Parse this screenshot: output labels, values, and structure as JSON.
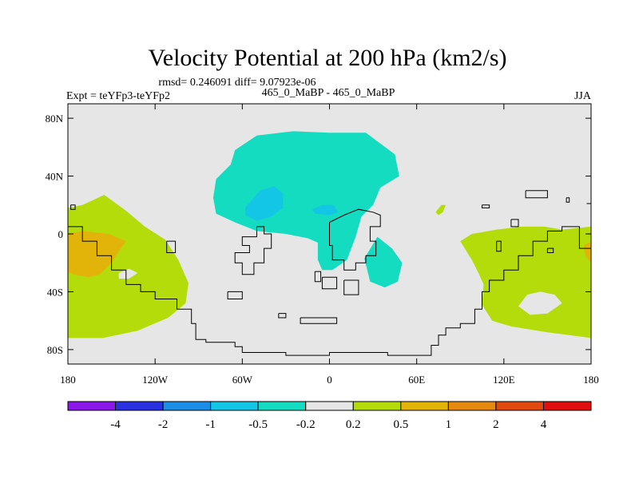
{
  "chart_data": {
    "type": "heatmap",
    "title": "Velocity Potential at 200 hPa (km2/s)",
    "stats_label": "rmsd= 0.246091  diff= 9.07923e-06",
    "experiment_label": "Expt = teYFp3-teYFp2",
    "comparison_label": "465_0_MaBP - 465_0_MaBP",
    "season_label": "JJA",
    "x_ticks": [
      {
        "value": -180,
        "label": "180"
      },
      {
        "value": -120,
        "label": "120W"
      },
      {
        "value": -60,
        "label": "60W"
      },
      {
        "value": 0,
        "label": "0"
      },
      {
        "value": 60,
        "label": "60E"
      },
      {
        "value": 120,
        "label": "120E"
      },
      {
        "value": 180,
        "label": "180"
      }
    ],
    "y_ticks": [
      {
        "value": 80,
        "label": "80N"
      },
      {
        "value": 40,
        "label": "40N"
      },
      {
        "value": 0,
        "label": "0"
      },
      {
        "value": -40,
        "label": "40S"
      },
      {
        "value": -80,
        "label": "80S"
      }
    ],
    "xlim": [
      -180,
      180
    ],
    "ylim": [
      -90,
      90
    ],
    "colorbar": {
      "colors": [
        "#8b17e8",
        "#2a32e0",
        "#1c8ee6",
        "#14c6e6",
        "#14dcc0",
        "#e6e6e6",
        "#b4dc0a",
        "#e2b40a",
        "#e68a0f",
        "#e04a10",
        "#e00e0e"
      ],
      "labels": [
        "-4",
        "-2",
        "-1",
        "-0.5",
        "-0.2",
        "0.2",
        "0.5",
        "1",
        "2",
        "4"
      ]
    },
    "regions": [
      {
        "name": "north-atlantic-teal",
        "level": "-0.5 to -0.2",
        "color": "#14dcc0",
        "points": [
          [
            -65,
            58
          ],
          [
            -50,
            68
          ],
          [
            -25,
            71
          ],
          [
            0,
            70
          ],
          [
            25,
            70
          ],
          [
            45,
            55
          ],
          [
            48,
            40
          ],
          [
            35,
            32
          ],
          [
            30,
            20
          ],
          [
            22,
            12
          ],
          [
            18,
            -2
          ],
          [
            12,
            -18
          ],
          [
            2,
            -25
          ],
          [
            -5,
            -25
          ],
          [
            -8,
            -18
          ],
          [
            -8,
            -6
          ],
          [
            -15,
            -3
          ],
          [
            -30,
            0
          ],
          [
            -50,
            2
          ],
          [
            -65,
            8
          ],
          [
            -78,
            14
          ],
          [
            -80,
            25
          ],
          [
            -78,
            38
          ],
          [
            -68,
            48
          ]
        ]
      },
      {
        "name": "west-atlantic-blue",
        "level": "-1 to -0.5",
        "color": "#14c6e6",
        "points": [
          [
            -58,
            18
          ],
          [
            -48,
            30
          ],
          [
            -38,
            33
          ],
          [
            -32,
            28
          ],
          [
            -32,
            18
          ],
          [
            -40,
            12
          ],
          [
            -50,
            9
          ],
          [
            -58,
            13
          ]
        ]
      },
      {
        "name": "europe-blue",
        "level": "-1 to -0.5",
        "color": "#14c6e6",
        "points": [
          [
            -12,
            17
          ],
          [
            -5,
            20
          ],
          [
            3,
            20
          ],
          [
            6,
            15
          ],
          [
            0,
            13
          ],
          [
            -10,
            14
          ]
        ]
      },
      {
        "name": "indian-ocean-teal",
        "level": "-0.5 to -0.2",
        "color": "#14dcc0",
        "points": [
          [
            33,
            -2
          ],
          [
            43,
            -10
          ],
          [
            50,
            -20
          ],
          [
            47,
            -33
          ],
          [
            38,
            -37
          ],
          [
            28,
            -33
          ],
          [
            24,
            -17
          ]
        ]
      },
      {
        "name": "asia-green",
        "level": "0.2 to 0.5",
        "color": "#b4dc0a",
        "points": [
          [
            73,
            15
          ],
          [
            77,
            20
          ],
          [
            80,
            20
          ],
          [
            78,
            15
          ],
          [
            75,
            13
          ]
        ]
      },
      {
        "name": "pacific-west-green",
        "level": "0.2 to 0.5",
        "color": "#b4dc0a",
        "points": [
          [
            -180,
            18
          ],
          [
            -170,
            20
          ],
          [
            -155,
            27
          ],
          [
            -140,
            16
          ],
          [
            -127,
            5
          ],
          [
            -113,
            -4
          ],
          [
            -104,
            -18
          ],
          [
            -97,
            -34
          ],
          [
            -99,
            -48
          ],
          [
            -111,
            -58
          ],
          [
            -132,
            -67
          ],
          [
            -156,
            -72
          ],
          [
            -180,
            -72
          ]
        ]
      },
      {
        "name": "pacific-east-green",
        "level": "0.2 to 0.5",
        "color": "#b4dc0a",
        "points": [
          [
            180,
            -72
          ],
          [
            165,
            -70
          ],
          [
            150,
            -68
          ],
          [
            125,
            -64
          ],
          [
            112,
            -60
          ],
          [
            105,
            -49
          ],
          [
            106,
            -35
          ],
          [
            103,
            -28
          ],
          [
            98,
            -18
          ],
          [
            90,
            -5
          ],
          [
            98,
            0
          ],
          [
            115,
            3
          ],
          [
            132,
            5
          ],
          [
            148,
            5
          ],
          [
            160,
            3
          ],
          [
            180,
            5
          ]
        ]
      },
      {
        "name": "pacific-west-orange",
        "level": "0.5 to 1",
        "color": "#e2b40a",
        "points": [
          [
            -180,
            0
          ],
          [
            -170,
            2
          ],
          [
            -152,
            0
          ],
          [
            -140,
            -5
          ],
          [
            -145,
            -12
          ],
          [
            -150,
            -20
          ],
          [
            -158,
            -28
          ],
          [
            -166,
            -30
          ],
          [
            -176,
            -28
          ],
          [
            -180,
            -26
          ]
        ]
      },
      {
        "name": "pacific-east-orange",
        "level": "0.5 to 1",
        "color": "#e2b40a",
        "points": [
          [
            180,
            -20
          ],
          [
            176,
            -15
          ],
          [
            175,
            -8
          ],
          [
            180,
            -5
          ]
        ]
      },
      {
        "name": "pacific-gray-hole-west",
        "level": "-0.2 to 0.2",
        "color": "#e6e6e6",
        "points": [
          [
            -145,
            -27
          ],
          [
            -138,
            -24
          ],
          [
            -132,
            -27
          ],
          [
            -138,
            -31
          ],
          [
            -145,
            -31
          ]
        ]
      },
      {
        "name": "pacific-gray-hole-east",
        "level": "-0.2 to 0.2",
        "color": "#e6e6e6",
        "points": [
          [
            130,
            -50
          ],
          [
            136,
            -42
          ],
          [
            145,
            -40
          ],
          [
            155,
            -42
          ],
          [
            160,
            -48
          ],
          [
            150,
            -55
          ],
          [
            138,
            -56
          ]
        ]
      }
    ],
    "coastlines": [
      [
        [
          -180,
          5
        ],
        [
          -170,
          5
        ],
        [
          -170,
          -5
        ],
        [
          -160,
          -5
        ],
        [
          -160,
          -15
        ],
        [
          -150,
          -15
        ],
        [
          -150,
          -25
        ],
        [
          -140,
          -25
        ],
        [
          -140,
          -35
        ],
        [
          -130,
          -35
        ],
        [
          -130,
          -40
        ],
        [
          -120,
          -40
        ],
        [
          -120,
          -45
        ],
        [
          -105,
          -45
        ],
        [
          -105,
          -52
        ],
        [
          -95,
          -52
        ],
        [
          -95,
          -62
        ],
        [
          -92,
          -62
        ],
        [
          -92,
          -73
        ],
        [
          -85,
          -73
        ],
        [
          -85,
          -75
        ],
        [
          -65,
          -75
        ],
        [
          -65,
          -78
        ],
        [
          -60,
          -78
        ],
        [
          -60,
          -82
        ],
        [
          -30,
          -82
        ],
        [
          -30,
          -84
        ],
        [
          0,
          -84
        ],
        [
          0,
          -82
        ],
        [
          40,
          -82
        ],
        [
          40,
          -84
        ],
        [
          70,
          -84
        ],
        [
          70,
          -77
        ],
        [
          75,
          -77
        ],
        [
          75,
          -70
        ],
        [
          80,
          -70
        ],
        [
          80,
          -65
        ],
        [
          90,
          -65
        ],
        [
          90,
          -62
        ],
        [
          100,
          -62
        ],
        [
          100,
          -52
        ],
        [
          105,
          -52
        ],
        [
          105,
          -40
        ],
        [
          110,
          -40
        ],
        [
          110,
          -32
        ],
        [
          120,
          -32
        ],
        [
          120,
          -25
        ],
        [
          130,
          -25
        ],
        [
          130,
          -15
        ],
        [
          140,
          -15
        ],
        [
          140,
          -5
        ],
        [
          150,
          -5
        ],
        [
          150,
          2
        ],
        [
          160,
          2
        ],
        [
          160,
          5
        ],
        [
          172,
          5
        ],
        [
          172,
          -10
        ],
        [
          180,
          -10
        ]
      ],
      [
        [
          -50,
          5
        ],
        [
          -45,
          5
        ],
        [
          -45,
          0
        ],
        [
          -40,
          0
        ],
        [
          -40,
          -10
        ],
        [
          -45,
          -10
        ],
        [
          -45,
          -20
        ],
        [
          -52,
          -20
        ],
        [
          -52,
          -28
        ],
        [
          -60,
          -28
        ],
        [
          -60,
          -20
        ],
        [
          -65,
          -20
        ],
        [
          -65,
          -13
        ],
        [
          -55,
          -13
        ],
        [
          -55,
          -8
        ],
        [
          -60,
          -8
        ],
        [
          -60,
          -2
        ],
        [
          -50,
          -2
        ],
        [
          -50,
          5
        ]
      ],
      [
        [
          -70,
          -40
        ],
        [
          -60,
          -40
        ],
        [
          -60,
          -45
        ],
        [
          -70,
          -45
        ],
        [
          -70,
          -40
        ]
      ],
      [
        [
          -35,
          -55
        ],
        [
          -30,
          -55
        ],
        [
          -30,
          -58
        ],
        [
          -35,
          -58
        ],
        [
          -35,
          -55
        ]
      ],
      [
        [
          -20,
          -58
        ],
        [
          5,
          -58
        ],
        [
          5,
          -62
        ],
        [
          -20,
          -62
        ],
        [
          -20,
          -58
        ]
      ],
      [
        [
          0,
          8
        ],
        [
          10,
          13
        ],
        [
          20,
          17
        ],
        [
          30,
          15
        ],
        [
          35,
          13
        ],
        [
          35,
          5
        ],
        [
          28,
          5
        ],
        [
          28,
          -5
        ],
        [
          32,
          -5
        ],
        [
          32,
          -15
        ],
        [
          25,
          -15
        ],
        [
          25,
          -20
        ],
        [
          18,
          -20
        ],
        [
          18,
          -25
        ],
        [
          10,
          -25
        ],
        [
          10,
          -18
        ],
        [
          2,
          -18
        ],
        [
          2,
          -8
        ],
        [
          0,
          -8
        ],
        [
          0,
          8
        ]
      ],
      [
        [
          -5,
          -30
        ],
        [
          5,
          -30
        ],
        [
          5,
          -38
        ],
        [
          -5,
          -38
        ],
        [
          -5,
          -30
        ]
      ],
      [
        [
          10,
          -32
        ],
        [
          20,
          -32
        ],
        [
          20,
          -42
        ],
        [
          10,
          -42
        ],
        [
          10,
          -32
        ]
      ],
      [
        [
          135,
          30
        ],
        [
          150,
          30
        ],
        [
          150,
          25
        ],
        [
          135,
          25
        ],
        [
          135,
          30
        ]
      ],
      [
        [
          163,
          25
        ],
        [
          165,
          25
        ],
        [
          165,
          22
        ],
        [
          163,
          22
        ],
        [
          163,
          25
        ]
      ],
      [
        [
          177,
          21
        ],
        [
          180,
          21
        ]
      ],
      [
        [
          125,
          10
        ],
        [
          130,
          10
        ],
        [
          130,
          5
        ],
        [
          125,
          5
        ],
        [
          125,
          10
        ]
      ],
      [
        [
          -178,
          20
        ],
        [
          -175,
          20
        ],
        [
          -175,
          17
        ],
        [
          -178,
          17
        ],
        [
          -178,
          20
        ]
      ],
      [
        [
          -112,
          -5
        ],
        [
          -106,
          -5
        ],
        [
          -106,
          -13
        ],
        [
          -112,
          -13
        ],
        [
          -112,
          -5
        ]
      ],
      [
        [
          -10,
          -26
        ],
        [
          -6,
          -26
        ],
        [
          -6,
          -33
        ],
        [
          -10,
          -33
        ],
        [
          -10,
          -26
        ]
      ],
      [
        [
          115,
          -5
        ],
        [
          118,
          -5
        ],
        [
          118,
          -12
        ],
        [
          115,
          -12
        ],
        [
          115,
          -5
        ]
      ],
      [
        [
          150,
          -10
        ],
        [
          154,
          -10
        ],
        [
          154,
          -13
        ],
        [
          150,
          -13
        ],
        [
          150,
          -10
        ]
      ],
      [
        [
          105,
          20
        ],
        [
          110,
          20
        ],
        [
          110,
          18
        ],
        [
          105,
          18
        ],
        [
          105,
          20
        ]
      ]
    ]
  }
}
